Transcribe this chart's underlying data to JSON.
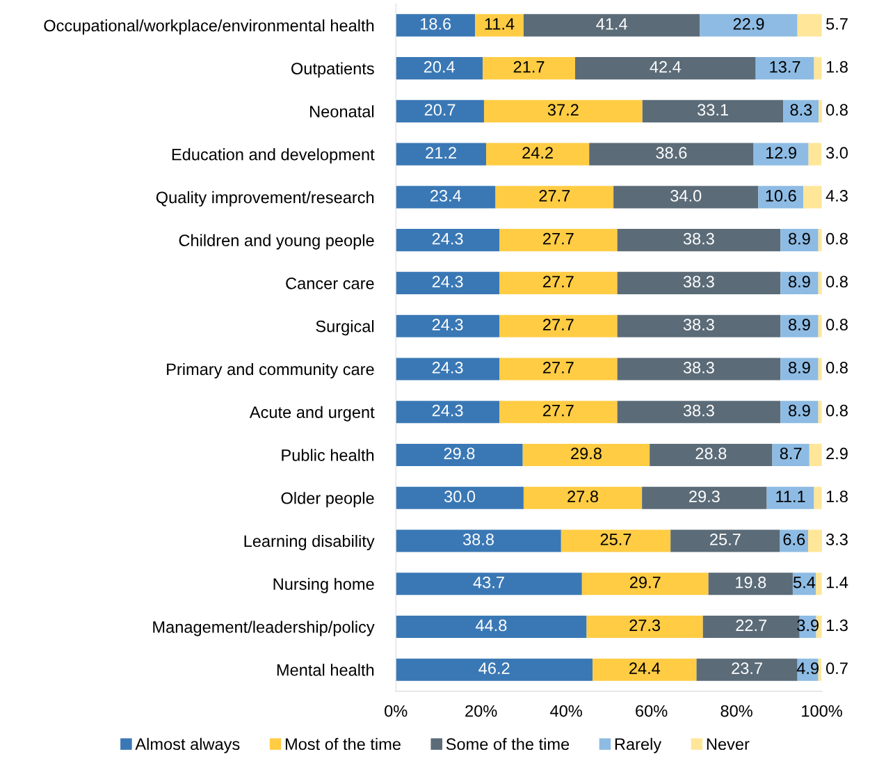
{
  "chart_data": {
    "type": "bar",
    "orientation": "horizontal",
    "stacked": true,
    "legend": "bottom",
    "grid": false,
    "categories": [
      "Occupational/workplace/environmental health",
      "Outpatients",
      "Neonatal",
      "Education and development",
      "Quality improvement/research",
      "Children and young people",
      "Cancer care",
      "Surgical",
      "Primary and community care",
      "Acute and urgent",
      "Public health",
      "Older people",
      "Learning disability",
      "Nursing home",
      "Management/leadership/policy",
      "Mental health"
    ],
    "series": [
      {
        "name": "Almost always",
        "color": "#3a78b5",
        "values": [
          18.6,
          20.4,
          20.7,
          21.2,
          23.4,
          24.3,
          24.3,
          24.3,
          24.3,
          24.3,
          29.8,
          30.0,
          38.8,
          43.7,
          44.8,
          46.2
        ],
        "value_labels": [
          "18.6",
          "20.4",
          "20.7",
          "21.2",
          "23.4",
          "24.3",
          "24.3",
          "24.3",
          "24.3",
          "24.3",
          "29.8",
          "30.0",
          "38.8",
          "43.7",
          "44.8",
          "46.2"
        ]
      },
      {
        "name": "Most of the time",
        "color": "#ffcc44",
        "values": [
          11.4,
          21.7,
          37.2,
          24.2,
          27.7,
          27.7,
          27.7,
          27.7,
          27.7,
          27.7,
          29.8,
          27.8,
          25.7,
          29.7,
          27.3,
          24.4
        ],
        "value_labels": [
          "11.4",
          "21.7",
          "37.2",
          "24.2",
          "27.7",
          "27.7",
          "27.7",
          "27.7",
          "27.7",
          "27.7",
          "29.8",
          "27.8",
          "25.7",
          "29.7",
          "27.3",
          "24.4"
        ]
      },
      {
        "name": "Some of the time",
        "color": "#5b6b78",
        "values": [
          41.4,
          42.4,
          33.1,
          38.6,
          34.0,
          38.3,
          38.3,
          38.3,
          38.3,
          38.3,
          28.8,
          29.3,
          25.7,
          19.8,
          22.7,
          23.7
        ],
        "value_labels": [
          "41.4",
          "42.4",
          "33.1",
          "38.6",
          "34.0",
          "38.3",
          "38.3",
          "38.3",
          "38.3",
          "38.3",
          "28.8",
          "29.3",
          "25.7",
          "19.8",
          "22.7",
          "23.7"
        ]
      },
      {
        "name": "Rarely",
        "color": "#8dbbe3",
        "values": [
          22.9,
          13.7,
          8.3,
          12.9,
          10.6,
          8.9,
          8.9,
          8.9,
          8.9,
          8.9,
          8.7,
          11.1,
          6.6,
          5.4,
          3.9,
          4.9
        ],
        "value_labels": [
          "22.9",
          "13.7",
          "8.3",
          "12.9",
          "10.6",
          "8.9",
          "8.9",
          "8.9",
          "8.9",
          "8.9",
          "8.7",
          "11.1",
          "6.6",
          "5.4",
          "3.9",
          "4.9"
        ]
      },
      {
        "name": "Never",
        "color": "#ffe699",
        "values": [
          5.7,
          1.8,
          0.8,
          3.0,
          4.3,
          0.8,
          0.8,
          0.8,
          0.8,
          0.8,
          2.9,
          1.8,
          3.3,
          1.4,
          1.3,
          0.7
        ],
        "value_labels": [
          "5.7",
          "1.8",
          "0.8",
          "3.0",
          "4.3",
          "0.8",
          "0.8",
          "0.8",
          "0.8",
          "0.8",
          "2.9",
          "1.8",
          "3.3",
          "1.4",
          "1.3",
          "0.7"
        ]
      }
    ],
    "xlim": [
      0,
      100.1
    ],
    "xticks": [
      {
        "value": 0,
        "label": "0%"
      },
      {
        "value": 20,
        "label": "20%"
      },
      {
        "value": 40,
        "label": "40%"
      },
      {
        "value": 60,
        "label": "60%"
      },
      {
        "value": 80,
        "label": "80%"
      },
      {
        "value": 100,
        "label": "100%"
      }
    ]
  }
}
